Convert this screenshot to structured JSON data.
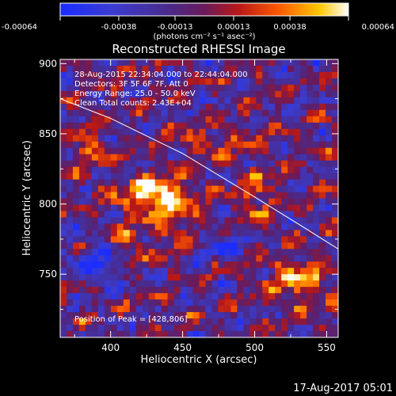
{
  "colorbar": {
    "ticks": [
      "-0.00064",
      "-0.00038",
      "-0.00013",
      "0.00013",
      "0.00038",
      "0.00064"
    ],
    "unit_label": "(photons cm⁻² s⁻¹ asec⁻²)",
    "range": [
      -0.00064,
      0.00064
    ]
  },
  "header": {
    "title": "Reconstructed RHESSI Image"
  },
  "info": {
    "time_range": "28-Aug-2015 22:34:04.000 to 22:44:04.000",
    "detectors": "Detectors: 3F 5F 6F 7F, Att 0",
    "energy_range": "Energy Range: 25.0 - 50.0 keV",
    "method": "Clean    Total counts: 2.43E+04",
    "peak": "Position of Peak = [428,806]"
  },
  "footer": {
    "date": "17-Aug-2017 05:01"
  },
  "chart_data": {
    "type": "heatmap",
    "title": "Reconstructed RHESSI Image",
    "xlabel": "Heliocentric X (arcsec)",
    "ylabel": "Heliocentric Y (arcsec)",
    "xlim": [
      365,
      558
    ],
    "ylim": [
      705,
      903
    ],
    "x_ticks": [
      400,
      450,
      500,
      550
    ],
    "y_ticks": [
      750,
      800,
      850,
      900
    ],
    "x_tick_labels": [
      "400",
      "450",
      "500",
      "550"
    ],
    "y_tick_labels": [
      "750",
      "800",
      "850",
      "900"
    ],
    "colormap": "blue-purple-red-orange-yellow-white",
    "peak_position": [
      428,
      806
    ],
    "limb_curve": [
      [
        365,
        875
      ],
      [
        400,
        861
      ],
      [
        450,
        836
      ],
      [
        500,
        805
      ],
      [
        530,
        786
      ],
      [
        558,
        768
      ]
    ],
    "colors": {
      "background": "#000000",
      "limb_line": "#ffffff"
    }
  }
}
